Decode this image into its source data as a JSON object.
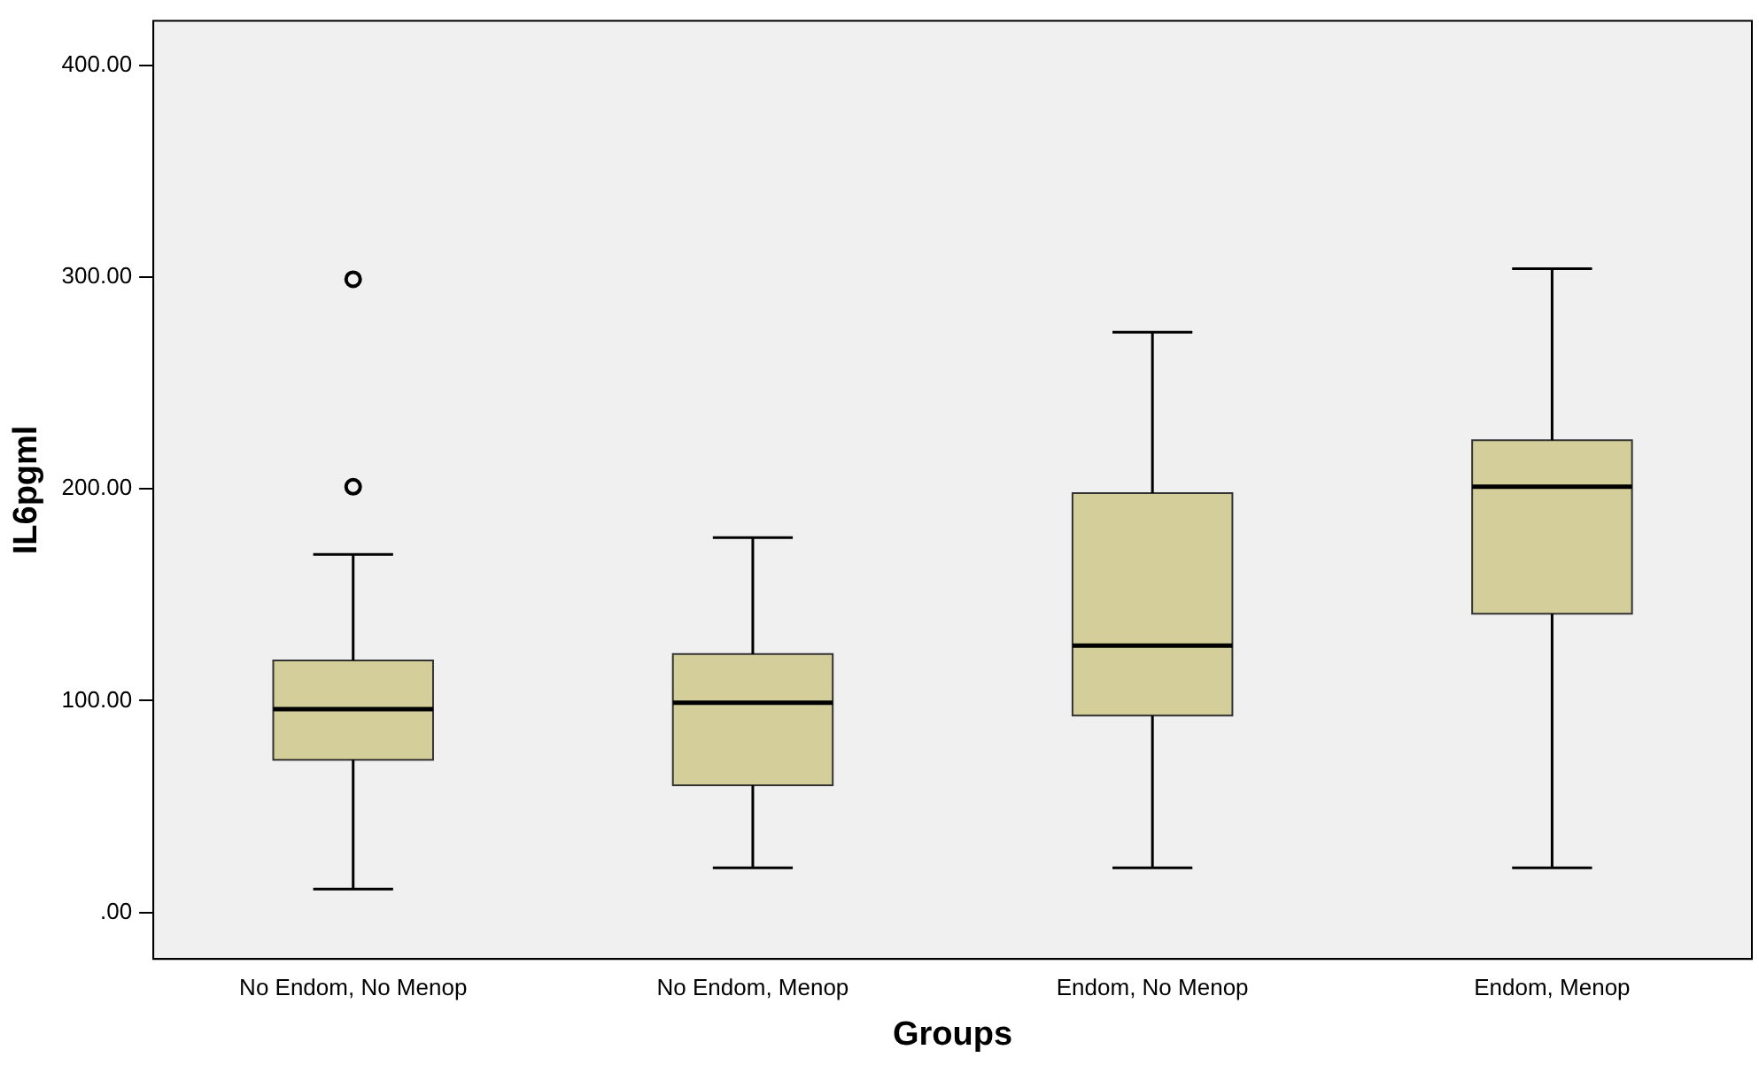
{
  "chart_data": {
    "type": "box",
    "xlabel": "Groups",
    "ylabel": "IL6pgml",
    "categories": [
      "No Endom, No Menop",
      "No Endom, Menop",
      "Endom, No Menop",
      "Endom, Menop"
    ],
    "boxes": [
      {
        "low": 11,
        "q1": 72,
        "median": 96,
        "q3": 119,
        "high": 169,
        "outliers": [
          201,
          299
        ]
      },
      {
        "low": 21,
        "q1": 60,
        "median": 99,
        "q3": 122,
        "high": 177
      },
      {
        "low": 21,
        "q1": 93,
        "median": 126,
        "q3": 198,
        "high": 274
      },
      {
        "low": 21,
        "q1": 141,
        "median": 201,
        "q3": 223,
        "high": 304
      }
    ],
    "color": "#d4cf9a",
    "ylim": [
      -22,
      421
    ],
    "yticks": [
      {
        "value": 0,
        "label": ".00"
      },
      {
        "value": 100,
        "label": "100.00"
      },
      {
        "value": 200,
        "label": "200.00"
      },
      {
        "value": 300,
        "label": "300.00"
      },
      {
        "value": 400,
        "label": "400.00"
      }
    ],
    "grid": false,
    "legend": false
  }
}
